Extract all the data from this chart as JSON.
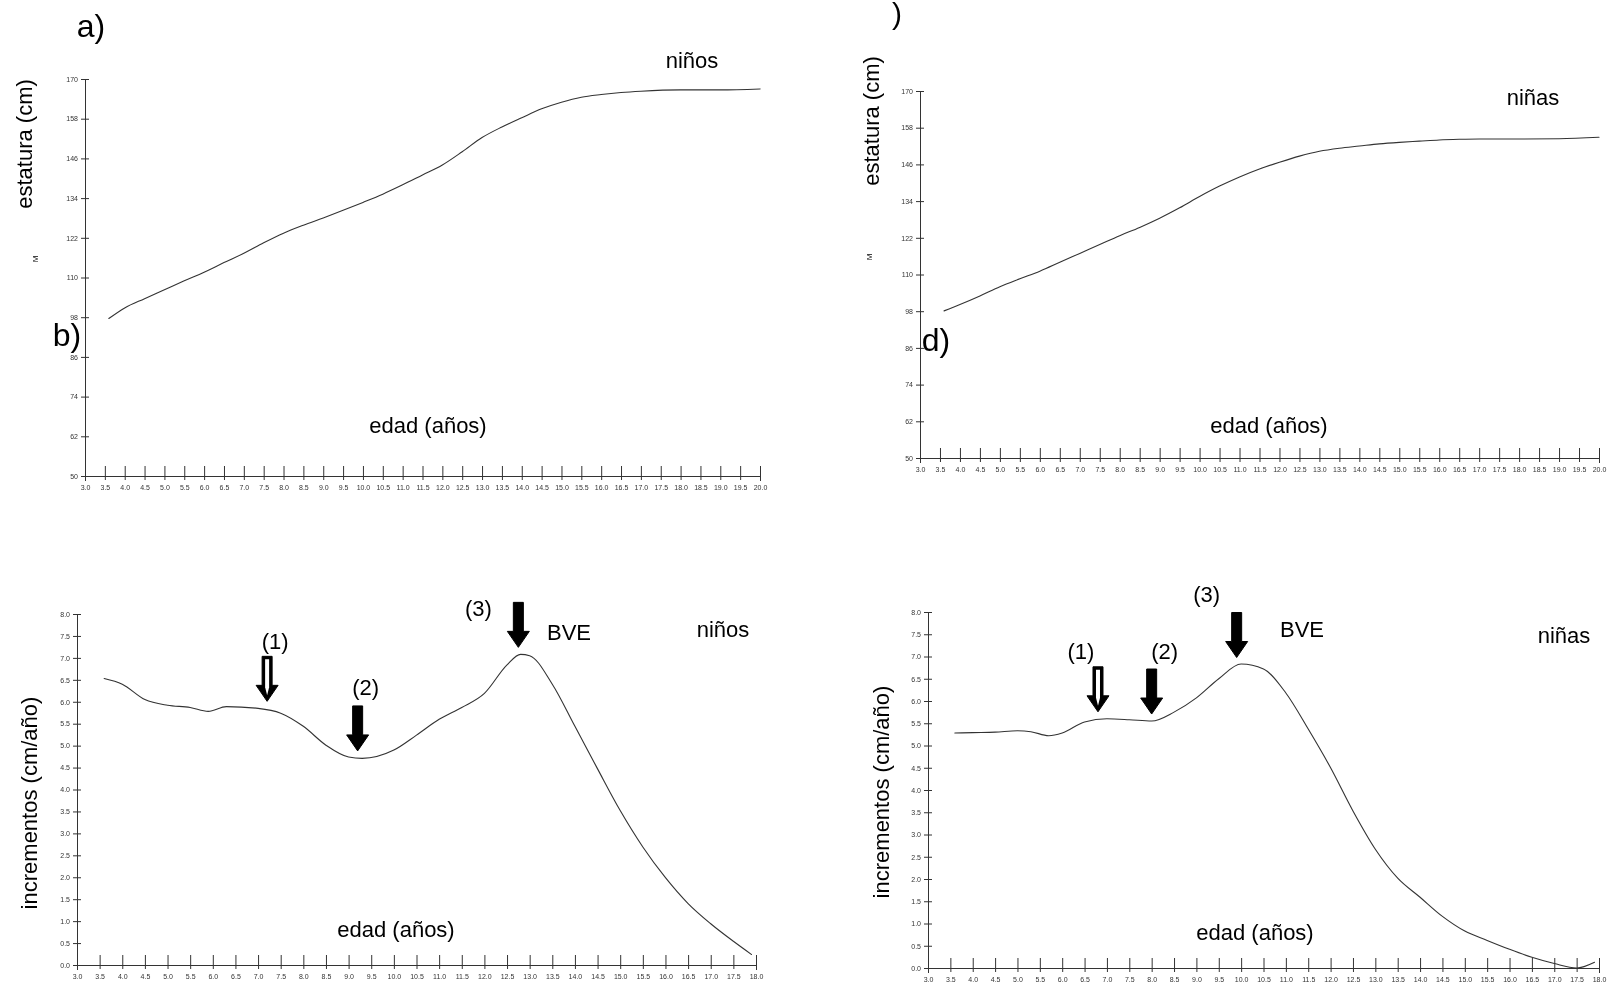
{
  "chart_data": [
    {
      "type": "line",
      "xlabel": "edad (años)",
      "ylabel": "estatura (cm)",
      "annotations": [
        "a)",
        "niños",
        "b)",
        "M"
      ],
      "x": [
        3.6,
        4,
        4.5,
        5,
        5.5,
        6,
        6.5,
        7,
        7.5,
        8,
        8.5,
        9,
        9.5,
        10,
        10.5,
        11,
        11.5,
        12,
        12.5,
        13,
        13.5,
        14,
        14.5,
        15,
        15.5,
        16,
        16.5,
        17,
        18,
        19,
        20
      ],
      "values": [
        97.6,
        100.8,
        103.6,
        106.3,
        109,
        111.6,
        114.5,
        117.3,
        120.5,
        123.4,
        125.8,
        128,
        130.3,
        132.7,
        135.2,
        138,
        141,
        144,
        148,
        152.3,
        155.5,
        158.3,
        161,
        163,
        164.5,
        165.3,
        165.9,
        166.3,
        166.7,
        166.7,
        167
      ],
      "color": "#333333",
      "marker": "none",
      "line_style": "solid",
      "xlim": [
        3,
        20
      ],
      "xticks": [
        {
          "value": 3,
          "label": "3.0"
        },
        {
          "value": 3.5,
          "label": "3.5"
        },
        {
          "value": 4,
          "label": "4.0"
        },
        {
          "value": 4.5,
          "label": "4.5"
        },
        {
          "value": 5,
          "label": "5.0"
        },
        {
          "value": 5.5,
          "label": "5.5"
        },
        {
          "value": 6,
          "label": "6.0"
        },
        {
          "value": 6.5,
          "label": "6.5"
        },
        {
          "value": 7,
          "label": "7.0"
        },
        {
          "value": 7.5,
          "label": "7.5"
        },
        {
          "value": 8,
          "label": "8.0"
        },
        {
          "value": 8.5,
          "label": "8.5"
        },
        {
          "value": 9,
          "label": "9.0"
        },
        {
          "value": 9.5,
          "label": "9.5"
        },
        {
          "value": 10,
          "label": "10.0"
        },
        {
          "value": 10.5,
          "label": "10.5"
        },
        {
          "value": 11,
          "label": "11.0"
        },
        {
          "value": 11.5,
          "label": "11.5"
        },
        {
          "value": 12,
          "label": "12.0"
        },
        {
          "value": 12.5,
          "label": "12.5"
        },
        {
          "value": 13,
          "label": "13.0"
        },
        {
          "value": 13.5,
          "label": "13.5"
        },
        {
          "value": 14,
          "label": "14.0"
        },
        {
          "value": 14.5,
          "label": "14.5"
        },
        {
          "value": 15,
          "label": "15.0"
        },
        {
          "value": 15.5,
          "label": "15.5"
        },
        {
          "value": 16,
          "label": "16.0"
        },
        {
          "value": 16.5,
          "label": "16.5"
        },
        {
          "value": 17,
          "label": "17.0"
        },
        {
          "value": 17.5,
          "label": "17.5"
        },
        {
          "value": 18,
          "label": "18.0"
        },
        {
          "value": 18.5,
          "label": "18.5"
        },
        {
          "value": 19,
          "label": "19.0"
        },
        {
          "value": 19.5,
          "label": "19.5"
        },
        {
          "value": 20,
          "label": "20.0"
        }
      ],
      "ylim": [
        50,
        170
      ],
      "yticks": [
        50,
        62,
        74,
        86,
        98,
        110,
        122,
        134,
        146,
        158,
        170
      ]
    },
    {
      "type": "line",
      "xlabel": "edad (años)",
      "ylabel": "estatura (cm)",
      "annotations": [
        ")",
        "niñas",
        "d)",
        "M"
      ],
      "x": [
        3.6,
        4,
        4.5,
        5,
        5.5,
        6,
        6.5,
        7,
        7.5,
        8,
        8.5,
        9,
        9.5,
        10,
        10.5,
        11,
        11.5,
        12,
        12.5,
        13,
        13.5,
        14,
        14.5,
        15,
        15.5,
        16,
        16.5,
        17,
        18,
        19,
        20
      ],
      "values": [
        98.1,
        100.2,
        103,
        106,
        108.6,
        111.1,
        114,
        116.9,
        119.8,
        122.7,
        125.4,
        128.4,
        131.8,
        135.5,
        138.9,
        141.9,
        144.5,
        146.7,
        148.7,
        150.3,
        151.3,
        152,
        152.7,
        153.2,
        153.6,
        154,
        154.2,
        154.3,
        154.3,
        154.4,
        154.9
      ],
      "color": "#333333",
      "marker": "none",
      "line_style": "solid",
      "xlim": [
        3,
        20
      ],
      "xticks": [
        {
          "value": 3,
          "label": "3.0"
        },
        {
          "value": 3.5,
          "label": "3.5"
        },
        {
          "value": 4,
          "label": "4.0"
        },
        {
          "value": 4.5,
          "label": "4.5"
        },
        {
          "value": 5,
          "label": "5.0"
        },
        {
          "value": 5.5,
          "label": "5.5"
        },
        {
          "value": 6,
          "label": "6.0"
        },
        {
          "value": 6.5,
          "label": "6.5"
        },
        {
          "value": 7,
          "label": "7.0"
        },
        {
          "value": 7.5,
          "label": "7.5"
        },
        {
          "value": 8,
          "label": "8.0"
        },
        {
          "value": 8.5,
          "label": "8.5"
        },
        {
          "value": 9,
          "label": "9.0"
        },
        {
          "value": 9.5,
          "label": "9.5"
        },
        {
          "value": 10,
          "label": "10.0"
        },
        {
          "value": 10.5,
          "label": "10.5"
        },
        {
          "value": 11,
          "label": "11.0"
        },
        {
          "value": 11.5,
          "label": "11.5"
        },
        {
          "value": 12,
          "label": "12.0"
        },
        {
          "value": 12.5,
          "label": "12.5"
        },
        {
          "value": 13,
          "label": "13.0"
        },
        {
          "value": 13.5,
          "label": "13.5"
        },
        {
          "value": 14,
          "label": "14.0"
        },
        {
          "value": 14.5,
          "label": "14.5"
        },
        {
          "value": 15,
          "label": "15.0"
        },
        {
          "value": 15.5,
          "label": "15.5"
        },
        {
          "value": 16,
          "label": "16.0"
        },
        {
          "value": 16.5,
          "label": "16.5"
        },
        {
          "value": 17,
          "label": "17.0"
        },
        {
          "value": 17.5,
          "label": "17.5"
        },
        {
          "value": 18,
          "label": "18.0"
        },
        {
          "value": 18.5,
          "label": "18.5"
        },
        {
          "value": 19,
          "label": "19.0"
        },
        {
          "value": 19.5,
          "label": "19.5"
        },
        {
          "value": 20,
          "label": "20.0"
        }
      ],
      "ylim": [
        50,
        170
      ],
      "yticks": [
        50,
        62,
        74,
        86,
        98,
        110,
        122,
        134,
        146,
        158,
        170
      ]
    },
    {
      "type": "line",
      "xlabel": "edad (años)",
      "ylabel": "incrementos (cm/año)",
      "annotations": [
        {
          "text": "(1)",
          "x": 7.2,
          "y": 5.85
        },
        {
          "text": "(2)",
          "x": 9.2,
          "y": 4.72
        },
        {
          "text": "(3)",
          "x": 12.75,
          "y": 7.08
        },
        "BVE",
        "niños"
      ],
      "x": [
        3.6,
        4,
        4.5,
        5,
        5.5,
        5.9,
        6.3,
        7,
        7.5,
        8,
        8.5,
        9,
        9.3,
        10,
        10.5,
        11,
        11.5,
        12,
        12.5,
        12.8,
        13,
        13.5,
        14,
        14.5,
        15,
        15.5,
        16,
        16.5,
        17,
        17.5,
        17.9
      ],
      "values": [
        6.53,
        6.4,
        6.05,
        5.92,
        5.87,
        5.78,
        5.89,
        5.85,
        5.74,
        5.44,
        5.01,
        4.74,
        4.71,
        4.9,
        5.24,
        5.6,
        5.87,
        6.19,
        6.84,
        7.08,
        7.05,
        6.4,
        5.44,
        4.47,
        3.52,
        2.69,
        1.99,
        1.4,
        0.94,
        0.54,
        0.24
      ],
      "color": "#333333",
      "marker": "none",
      "line_style": "solid",
      "xlim": [
        3,
        18
      ],
      "xticks": [
        {
          "value": 3,
          "label": "3.0"
        },
        {
          "value": 3.5,
          "label": "3.5"
        },
        {
          "value": 4,
          "label": "4.0"
        },
        {
          "value": 4.5,
          "label": "4.5"
        },
        {
          "value": 5,
          "label": "5.0"
        },
        {
          "value": 5.5,
          "label": "5.5"
        },
        {
          "value": 6,
          "label": "6.0"
        },
        {
          "value": 6.5,
          "label": "6.5"
        },
        {
          "value": 7,
          "label": "7.0"
        },
        {
          "value": 7.5,
          "label": "7.5"
        },
        {
          "value": 8,
          "label": "8.0"
        },
        {
          "value": 8.5,
          "label": "8.5"
        },
        {
          "value": 9,
          "label": "9.0"
        },
        {
          "value": 9.5,
          "label": "9.5"
        },
        {
          "value": 10,
          "label": "10.0"
        },
        {
          "value": 10.5,
          "label": "10.5"
        },
        {
          "value": 11,
          "label": "11.0"
        },
        {
          "value": 11.5,
          "label": "11.5"
        },
        {
          "value": 12,
          "label": "12.0"
        },
        {
          "value": 12.5,
          "label": "12.5"
        },
        {
          "value": 13,
          "label": "13.0"
        },
        {
          "value": 13.5,
          "label": "13.5"
        },
        {
          "value": 14,
          "label": "14.0"
        },
        {
          "value": 14.5,
          "label": "14.5"
        },
        {
          "value": 15,
          "label": "15.0"
        },
        {
          "value": 15.5,
          "label": "15.5"
        },
        {
          "value": 16,
          "label": "16.0"
        },
        {
          "value": 16.5,
          "label": "16.5"
        },
        {
          "value": 17,
          "label": "17.0"
        },
        {
          "value": 17.5,
          "label": "17.5"
        },
        {
          "value": 18,
          "label": "18.0"
        }
      ],
      "ylim": [
        0,
        8
      ],
      "yticks": [
        {
          "value": 0,
          "label": "0.0"
        },
        {
          "value": 0.5,
          "label": "0.5"
        },
        {
          "value": 1,
          "label": "1.0"
        },
        {
          "value": 1.5,
          "label": "1.5"
        },
        {
          "value": 2,
          "label": "2.0"
        },
        {
          "value": 2.5,
          "label": "2.5"
        },
        {
          "value": 3,
          "label": "3.0"
        },
        {
          "value": 3.5,
          "label": "3.5"
        },
        {
          "value": 4,
          "label": "4.0"
        },
        {
          "value": 4.5,
          "label": "4.5"
        },
        {
          "value": 5,
          "label": "5.0"
        },
        {
          "value": 5.5,
          "label": "5.5"
        },
        {
          "value": 6,
          "label": "6.0"
        },
        {
          "value": 6.5,
          "label": "6.5"
        },
        {
          "value": 7,
          "label": "7.0"
        },
        {
          "value": 7.5,
          "label": "7.5"
        },
        {
          "value": 8,
          "label": "8.0"
        }
      ]
    },
    {
      "type": "line",
      "xlabel": "edad (años)",
      "ylabel": "incrementos (cm/año)",
      "annotations": [
        {
          "text": "(1)",
          "x": 6.8,
          "y": 5.6
        },
        {
          "text": "(2)",
          "x": 8.0,
          "y": 5.55
        },
        {
          "text": "(3)",
          "x": 9.9,
          "y": 6.82
        },
        "BVE",
        "niñas"
      ],
      "x": [
        3.6,
        4,
        4.5,
        5,
        5.3,
        5.7,
        6,
        6.5,
        7,
        7.5,
        8,
        8.5,
        9,
        9.5,
        10,
        10.5,
        11,
        11.5,
        12,
        12.5,
        13,
        13.5,
        14,
        14.5,
        15,
        15.5,
        16,
        16.5,
        17,
        17.5,
        17.9
      ],
      "values": [
        5.28,
        5.29,
        5.3,
        5.33,
        5.31,
        5.22,
        5.28,
        5.53,
        5.6,
        5.58,
        5.55,
        5.75,
        6.07,
        6.5,
        6.83,
        6.72,
        6.18,
        5.37,
        4.5,
        3.53,
        2.67,
        2.02,
        1.59,
        1.16,
        0.83,
        0.62,
        0.42,
        0.24,
        0.1,
        0,
        0.13
      ],
      "color": "#333333",
      "marker": "none",
      "line_style": "solid",
      "xlim": [
        3,
        18
      ],
      "xticks": [
        {
          "value": 3,
          "label": "3.0"
        },
        {
          "value": 3.5,
          "label": "3.5"
        },
        {
          "value": 4,
          "label": "4.0"
        },
        {
          "value": 4.5,
          "label": "4.5"
        },
        {
          "value": 5,
          "label": "5.0"
        },
        {
          "value": 5.5,
          "label": "5.5"
        },
        {
          "value": 6,
          "label": "6.0"
        },
        {
          "value": 6.5,
          "label": "6.5"
        },
        {
          "value": 7,
          "label": "7.0"
        },
        {
          "value": 7.5,
          "label": "7.5"
        },
        {
          "value": 8,
          "label": "8.0"
        },
        {
          "value": 8.5,
          "label": "8.5"
        },
        {
          "value": 9,
          "label": "9.0"
        },
        {
          "value": 9.5,
          "label": "9.5"
        },
        {
          "value": 10,
          "label": "10.0"
        },
        {
          "value": 10.5,
          "label": "10.5"
        },
        {
          "value": 11,
          "label": "11.0"
        },
        {
          "value": 11.5,
          "label": "11.5"
        },
        {
          "value": 12,
          "label": "12.0"
        },
        {
          "value": 12.5,
          "label": "12.5"
        },
        {
          "value": 13,
          "label": "13.0"
        },
        {
          "value": 13.5,
          "label": "13.5"
        },
        {
          "value": 14,
          "label": "14.0"
        },
        {
          "value": 14.5,
          "label": "14.5"
        },
        {
          "value": 15,
          "label": "15.0"
        },
        {
          "value": 15.5,
          "label": "15.5"
        },
        {
          "value": 16,
          "label": "16.0"
        },
        {
          "value": 16.5,
          "label": "16.5"
        },
        {
          "value": 17,
          "label": "17.0"
        },
        {
          "value": 17.5,
          "label": "17.5"
        },
        {
          "value": 18,
          "label": "18.0"
        }
      ],
      "ylim": [
        0,
        8
      ],
      "yticks": [
        {
          "value": 0,
          "label": "0.0"
        },
        {
          "value": 0.5,
          "label": "0.5"
        },
        {
          "value": 1,
          "label": "1.0"
        },
        {
          "value": 1.5,
          "label": "1.5"
        },
        {
          "value": 2,
          "label": "2.0"
        },
        {
          "value": 2.5,
          "label": "2.5"
        },
        {
          "value": 3,
          "label": "3.0"
        },
        {
          "value": 3.5,
          "label": "3.5"
        },
        {
          "value": 4,
          "label": "4.0"
        },
        {
          "value": 4.5,
          "label": "4.5"
        },
        {
          "value": 5,
          "label": "5.0"
        },
        {
          "value": 5.5,
          "label": "5.5"
        },
        {
          "value": 6,
          "label": "6.0"
        },
        {
          "value": 6.5,
          "label": "6.5"
        },
        {
          "value": 7,
          "label": "7.0"
        },
        {
          "value": 7.5,
          "label": "7.5"
        },
        {
          "value": 8,
          "label": "8.0"
        }
      ]
    }
  ]
}
